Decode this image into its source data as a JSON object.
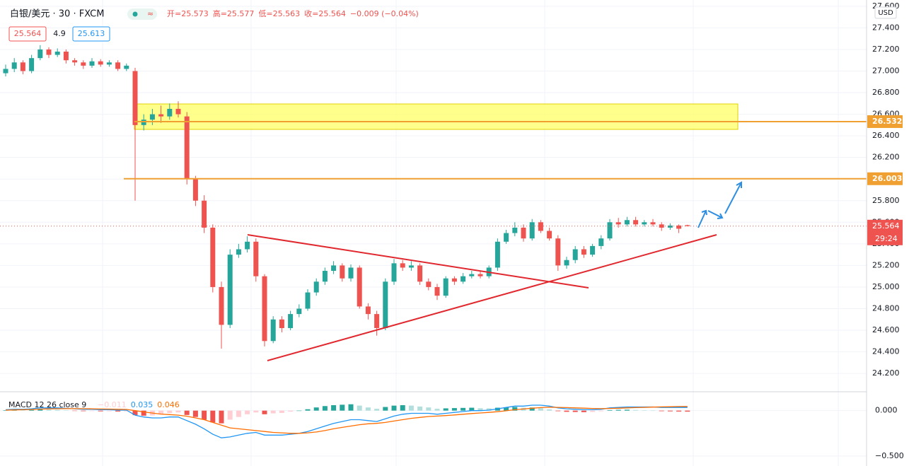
{
  "chart_data": {
    "type": "candlestick",
    "title": "白银/美元 · 30 · FXCM",
    "ohlc_legend": [
      "开=25.573",
      "高=25.577",
      "低=25.563",
      "收=25.564",
      "−0.009 (−0.04%)"
    ],
    "quote": {
      "bid": 25.564,
      "spread": 4.9,
      "ask": 25.613
    },
    "currency": "USD",
    "up_color": "#26a69a",
    "down_color": "#ef5350",
    "open": [
      26.98,
      27.02,
      27.08,
      27.0,
      27.12,
      27.2,
      27.15,
      27.18,
      27.1,
      27.08,
      27.05,
      27.09,
      27.06,
      27.08,
      27.02,
      27.0,
      26.5,
      26.55,
      26.6,
      26.58,
      26.65,
      26.58,
      26.0,
      25.8,
      25.55,
      25.0,
      24.65,
      25.3,
      25.35,
      25.42,
      25.1,
      24.5,
      24.7,
      24.62,
      24.75,
      24.8,
      24.95,
      25.05,
      25.15,
      25.2,
      25.08,
      25.18,
      24.82,
      24.75,
      24.62,
      25.05,
      25.22,
      25.18,
      25.2,
      25.05,
      25.0,
      24.92,
      25.08,
      25.05,
      25.1,
      25.12,
      25.1,
      25.18,
      25.42,
      25.5,
      25.55,
      25.45,
      25.6,
      25.52,
      25.45,
      25.2,
      25.25,
      25.35,
      25.3,
      25.38,
      25.45,
      25.6,
      25.58,
      25.62,
      25.58,
      25.6,
      25.58,
      25.55,
      25.57,
      25.573
    ],
    "high": [
      27.06,
      27.12,
      27.1,
      27.15,
      27.24,
      27.22,
      27.21,
      27.2,
      27.12,
      27.1,
      27.12,
      27.11,
      27.1,
      27.1,
      27.07,
      27.03,
      26.6,
      26.65,
      26.68,
      26.7,
      26.72,
      26.62,
      26.03,
      25.85,
      25.58,
      25.05,
      25.35,
      25.4,
      25.47,
      25.45,
      25.12,
      24.73,
      24.73,
      24.78,
      24.84,
      24.98,
      25.08,
      25.18,
      25.24,
      25.22,
      25.21,
      25.2,
      24.85,
      24.78,
      25.08,
      25.26,
      25.25,
      25.24,
      25.22,
      25.08,
      25.03,
      25.1,
      25.1,
      25.13,
      25.15,
      25.15,
      25.2,
      25.45,
      25.53,
      25.6,
      25.58,
      25.63,
      25.62,
      25.55,
      25.48,
      25.28,
      25.38,
      25.38,
      25.4,
      25.48,
      25.63,
      25.64,
      25.65,
      25.65,
      25.62,
      25.63,
      25.6,
      25.59,
      25.58,
      25.577
    ],
    "low": [
      26.95,
      26.99,
      26.97,
      26.98,
      27.1,
      27.12,
      27.13,
      27.07,
      27.05,
      27.02,
      27.03,
      27.04,
      27.04,
      27.0,
      27.0,
      25.8,
      26.45,
      26.5,
      26.52,
      26.55,
      26.57,
      25.95,
      25.75,
      25.5,
      24.95,
      24.43,
      24.62,
      25.27,
      25.32,
      25.05,
      24.45,
      24.48,
      24.58,
      24.6,
      24.72,
      24.78,
      24.92,
      25.02,
      25.12,
      25.05,
      25.05,
      24.8,
      24.7,
      24.55,
      24.6,
      25.02,
      25.15,
      25.15,
      25.02,
      24.97,
      24.88,
      24.9,
      25.02,
      25.03,
      25.08,
      25.08,
      25.08,
      25.15,
      25.4,
      25.47,
      25.42,
      25.43,
      25.5,
      25.43,
      25.15,
      25.17,
      25.22,
      25.27,
      25.28,
      25.35,
      25.43,
      25.55,
      25.56,
      25.56,
      25.56,
      25.56,
      25.52,
      25.53,
      25.5,
      25.563
    ],
    "close": [
      27.02,
      27.08,
      27.0,
      27.12,
      27.2,
      27.15,
      27.18,
      27.1,
      27.08,
      27.05,
      27.09,
      27.06,
      27.08,
      27.02,
      27.05,
      26.5,
      26.55,
      26.6,
      26.58,
      26.65,
      26.6,
      26.0,
      25.8,
      25.55,
      25.0,
      24.65,
      25.3,
      25.35,
      25.42,
      25.1,
      24.5,
      24.7,
      24.62,
      24.75,
      24.8,
      24.95,
      25.05,
      25.15,
      25.2,
      25.08,
      25.18,
      24.82,
      24.75,
      24.62,
      25.05,
      25.22,
      25.18,
      25.2,
      25.05,
      25.0,
      24.92,
      25.08,
      25.05,
      25.1,
      25.12,
      25.1,
      25.18,
      25.42,
      25.5,
      25.55,
      25.45,
      25.6,
      25.52,
      25.45,
      25.2,
      25.25,
      25.35,
      25.3,
      25.38,
      25.45,
      25.6,
      25.58,
      25.62,
      25.58,
      25.6,
      25.58,
      25.55,
      25.57,
      25.54,
      25.564
    ],
    "ylim": [
      24.037,
      27.658
    ],
    "yticks": [
      {
        "value": 24.2,
        "label": "24.200"
      },
      {
        "value": 24.4,
        "label": "24.400"
      },
      {
        "value": 24.6,
        "label": "24.600"
      },
      {
        "value": 24.8,
        "label": "24.800"
      },
      {
        "value": 25.0,
        "label": "25.000"
      },
      {
        "value": 25.2,
        "label": "25.200"
      },
      {
        "value": 25.4,
        "label": "25.400"
      },
      {
        "value": 25.6,
        "label": "25.600"
      },
      {
        "value": 25.8,
        "label": "25.800"
      },
      {
        "value": 26.0,
        "label": "26.000"
      },
      {
        "value": 26.2,
        "label": "26.200"
      },
      {
        "value": 26.4,
        "label": "26.400"
      },
      {
        "value": 26.6,
        "label": "26.600"
      },
      {
        "value": 26.8,
        "label": "26.800"
      },
      {
        "value": 27.0,
        "label": "27.000"
      },
      {
        "value": 27.2,
        "label": "27.200"
      },
      {
        "value": 27.4,
        "label": "27.400"
      },
      {
        "value": 27.6,
        "label": "27.600"
      }
    ],
    "grid": true,
    "levels": [
      {
        "value": 26.532,
        "color": "#f0a030"
      },
      {
        "value": 26.003,
        "color": "#f0a030"
      }
    ],
    "last_price": 25.564,
    "last_color": "#ef5350",
    "countdown": "29:24",
    "macd": {
      "label": "MACD 12 26 close 9",
      "legend_values": [
        "−0.011",
        "0.035",
        "0.046"
      ],
      "ylim": [
        -0.61,
        0.2
      ],
      "yticks": [
        {
          "value": 0,
          "label": "0.000"
        },
        {
          "value": -0.5,
          "label": "−0.500"
        }
      ],
      "hist_colors": [
        "#26a69a",
        "#b2dfdb",
        "#ffcdd2",
        "#ef5350"
      ],
      "macd_color": "#2196f3",
      "signal_color": "#ff6d00",
      "histogram": [
        0.005,
        0.007,
        0.005,
        0.008,
        0.014,
        0.011,
        0.009,
        0.003,
        -0.002,
        -0.006,
        -0.005,
        -0.008,
        -0.007,
        -0.01,
        -0.008,
        -0.05,
        -0.056,
        -0.053,
        -0.042,
        -0.026,
        -0.02,
        -0.048,
        -0.07,
        -0.1,
        -0.13,
        -0.14,
        -0.1,
        -0.07,
        -0.04,
        -0.02,
        -0.04,
        -0.03,
        -0.025,
        -0.01,
        0.0,
        0.015,
        0.035,
        0.05,
        0.06,
        0.065,
        0.07,
        0.055,
        0.035,
        0.02,
        0.04,
        0.055,
        0.06,
        0.055,
        0.045,
        0.035,
        0.02,
        0.025,
        0.028,
        0.03,
        0.032,
        0.026,
        0.025,
        0.032,
        0.037,
        0.04,
        0.032,
        0.034,
        0.027,
        0.013,
        -0.006,
        -0.013,
        -0.015,
        -0.017,
        -0.014,
        -0.007,
        0.006,
        0.009,
        0.01,
        0.007,
        0.004,
        0.001,
        -0.006,
        -0.008,
        -0.01,
        -0.011
      ],
      "macd": [
        0.01,
        0.015,
        0.015,
        0.02,
        0.03,
        0.03,
        0.03,
        0.025,
        0.02,
        0.015,
        0.015,
        0.01,
        0.01,
        0.005,
        0.005,
        -0.05,
        -0.07,
        -0.08,
        -0.08,
        -0.07,
        -0.07,
        -0.11,
        -0.15,
        -0.2,
        -0.26,
        -0.3,
        -0.29,
        -0.27,
        -0.25,
        -0.24,
        -0.27,
        -0.27,
        -0.27,
        -0.26,
        -0.25,
        -0.23,
        -0.2,
        -0.17,
        -0.14,
        -0.12,
        -0.1,
        -0.1,
        -0.11,
        -0.12,
        -0.09,
        -0.06,
        -0.04,
        -0.03,
        -0.03,
        -0.03,
        -0.04,
        -0.03,
        -0.02,
        -0.01,
        0.0,
        0.0,
        0.005,
        0.02,
        0.035,
        0.05,
        0.05,
        0.06,
        0.06,
        0.05,
        0.03,
        0.02,
        0.015,
        0.01,
        0.01,
        0.015,
        0.03,
        0.035,
        0.04,
        0.04,
        0.04,
        0.04,
        0.035,
        0.035,
        0.035,
        0.035
      ],
      "signal": [
        0.005,
        0.008,
        0.01,
        0.012,
        0.016,
        0.019,
        0.021,
        0.022,
        0.022,
        0.021,
        0.02,
        0.018,
        0.017,
        0.015,
        0.013,
        0.0,
        -0.014,
        -0.027,
        -0.038,
        -0.044,
        -0.05,
        -0.062,
        -0.08,
        -0.1,
        -0.13,
        -0.16,
        -0.19,
        -0.2,
        -0.21,
        -0.22,
        -0.23,
        -0.24,
        -0.245,
        -0.25,
        -0.25,
        -0.245,
        -0.235,
        -0.22,
        -0.2,
        -0.185,
        -0.17,
        -0.155,
        -0.145,
        -0.14,
        -0.13,
        -0.115,
        -0.1,
        -0.085,
        -0.075,
        -0.065,
        -0.06,
        -0.055,
        -0.048,
        -0.04,
        -0.032,
        -0.026,
        -0.02,
        -0.012,
        -0.002,
        0.01,
        0.018,
        0.026,
        0.033,
        0.037,
        0.036,
        0.033,
        0.03,
        0.027,
        0.024,
        0.022,
        0.024,
        0.026,
        0.03,
        0.033,
        0.036,
        0.039,
        0.041,
        0.043,
        0.045,
        0.046
      ]
    }
  }
}
